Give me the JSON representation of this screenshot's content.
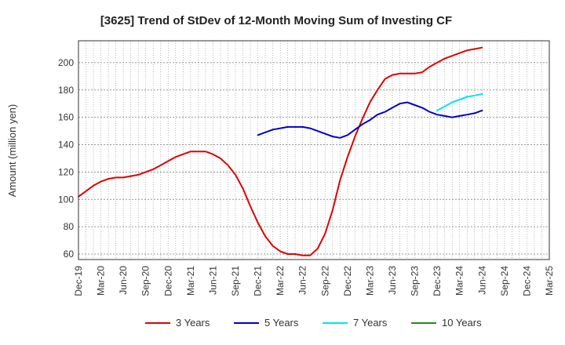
{
  "chart_data": {
    "type": "line",
    "title": "[3625]  Trend of StDev of 12-Month Moving Sum of Investing CF",
    "xlabel": "",
    "ylabel": "Amount (million yen)",
    "ylim": [
      56,
      216
    ],
    "yticks": [
      60,
      80,
      100,
      120,
      140,
      160,
      180,
      200
    ],
    "x_tick_labels": [
      "Dec-19",
      "Mar-20",
      "Jun-20",
      "Sep-20",
      "Dec-20",
      "Mar-21",
      "Jun-21",
      "Sep-21",
      "Dec-21",
      "Mar-22",
      "Jun-22",
      "Sep-22",
      "Dec-22",
      "Mar-23",
      "Jun-23",
      "Sep-23",
      "Dec-23",
      "Mar-24",
      "Jun-24",
      "Sep-24",
      "Dec-24",
      "Mar-25"
    ],
    "grid": true,
    "legend_position": "bottom",
    "series": [
      {
        "name": "3 Years",
        "color": "#e00000",
        "x": [
          "Dec-19",
          "Jan-20",
          "Feb-20",
          "Mar-20",
          "Apr-20",
          "May-20",
          "Jun-20",
          "Jul-20",
          "Aug-20",
          "Sep-20",
          "Oct-20",
          "Nov-20",
          "Dec-20",
          "Jan-21",
          "Feb-21",
          "Mar-21",
          "Apr-21",
          "May-21",
          "Jun-21",
          "Jul-21",
          "Aug-21",
          "Sep-21",
          "Oct-21",
          "Nov-21",
          "Dec-21",
          "Jan-22",
          "Feb-22",
          "Mar-22",
          "Apr-22",
          "May-22",
          "Jun-22",
          "Jul-22",
          "Aug-22",
          "Sep-22",
          "Oct-22",
          "Nov-22",
          "Dec-22",
          "Jan-23",
          "Feb-23",
          "Mar-23",
          "Apr-23",
          "May-23",
          "Jun-23",
          "Jul-23",
          "Aug-23",
          "Sep-23",
          "Oct-23",
          "Nov-23",
          "Dec-23",
          "Jan-24",
          "Feb-24",
          "Mar-24",
          "Apr-24",
          "May-24",
          "Jun-24"
        ],
        "values": [
          102,
          106,
          110,
          113,
          115,
          116,
          116,
          117,
          118,
          120,
          122,
          125,
          128,
          131,
          133,
          135,
          135,
          135,
          133,
          130,
          125,
          118,
          108,
          95,
          83,
          73,
          66,
          62,
          60,
          60,
          59,
          59,
          64,
          75,
          92,
          114,
          131,
          146,
          159,
          171,
          180,
          188,
          191,
          192,
          192,
          192,
          193,
          197,
          200,
          203,
          205,
          207,
          209,
          210,
          211
        ]
      },
      {
        "name": "5 Years",
        "color": "#0000cc",
        "x": [
          "Dec-21",
          "Jan-22",
          "Feb-22",
          "Mar-22",
          "Apr-22",
          "May-22",
          "Jun-22",
          "Jul-22",
          "Aug-22",
          "Sep-22",
          "Oct-22",
          "Nov-22",
          "Dec-22",
          "Jan-23",
          "Feb-23",
          "Mar-23",
          "Apr-23",
          "May-23",
          "Jun-23",
          "Jul-23",
          "Aug-23",
          "Sep-23",
          "Oct-23",
          "Nov-23",
          "Dec-23",
          "Jan-24",
          "Feb-24",
          "Mar-24",
          "Apr-24",
          "May-24",
          "Jun-24"
        ],
        "values": [
          147,
          149,
          151,
          152,
          153,
          153,
          153,
          152,
          150,
          148,
          146,
          145,
          147,
          151,
          155,
          158,
          162,
          164,
          167,
          170,
          171,
          169,
          167,
          164,
          162,
          161,
          160,
          161,
          162,
          163,
          165
        ]
      },
      {
        "name": "7 Years",
        "color": "#00e5ee",
        "x": [
          "Dec-23",
          "Jan-24",
          "Feb-24",
          "Mar-24",
          "Apr-24",
          "May-24",
          "Jun-24"
        ],
        "values": [
          165,
          168,
          171,
          173,
          175,
          176,
          177
        ]
      },
      {
        "name": "10 Years",
        "color": "#228b22",
        "x": [],
        "values": []
      }
    ]
  }
}
